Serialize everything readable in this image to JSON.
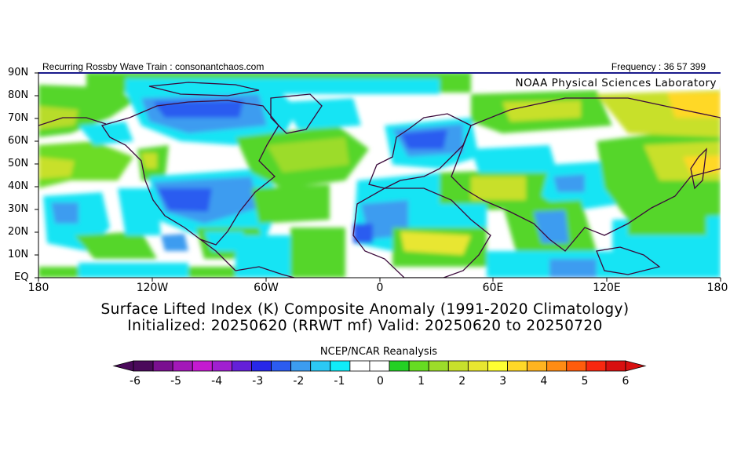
{
  "header": {
    "left_text": "Recurring Rossby Wave Train : consonantchaos.com",
    "right_text": "Frequency : 36 57 399"
  },
  "map": {
    "watermark": "NOAA Physical Sciences Laboratory",
    "lat_labels": [
      "90N",
      "80N",
      "70N",
      "60N",
      "50N",
      "40N",
      "30N",
      "20N",
      "10N",
      "EQ"
    ],
    "lon_labels": [
      "180",
      "120W",
      "60W",
      "0",
      "60E",
      "120E",
      "180"
    ],
    "colors": {
      "coast": "#3b0a3b",
      "border_top": "#1a1a8c"
    }
  },
  "title": {
    "line1": "Surface Lifted Index (K) Composite Anomaly (1991-2020 Climatology)",
    "line2": "Initialized: 20250620 (RRWT mf) Valid: 20250620 to 20250720"
  },
  "colorbar": {
    "title": "NCEP/NCAR Reanalysis",
    "labels": [
      "-6",
      "-5",
      "-4",
      "-3",
      "-2",
      "-1",
      "0",
      "1",
      "2",
      "3",
      "4",
      "5",
      "6"
    ],
    "colors": [
      "#4a0a5a",
      "#7a1090",
      "#a318b8",
      "#c41ad0",
      "#a020d0",
      "#6420d8",
      "#2828e8",
      "#2c5cf0",
      "#3c9cf0",
      "#2cc8f4",
      "#10ecf8",
      "#ffffff",
      "#ffffff",
      "#24d024",
      "#66dc22",
      "#9cdc2a",
      "#c8e02c",
      "#e8e630",
      "#ffff32",
      "#ffd828",
      "#ffb420",
      "#ff8c14",
      "#ff5c0c",
      "#f82810",
      "#d81010"
    ]
  }
}
